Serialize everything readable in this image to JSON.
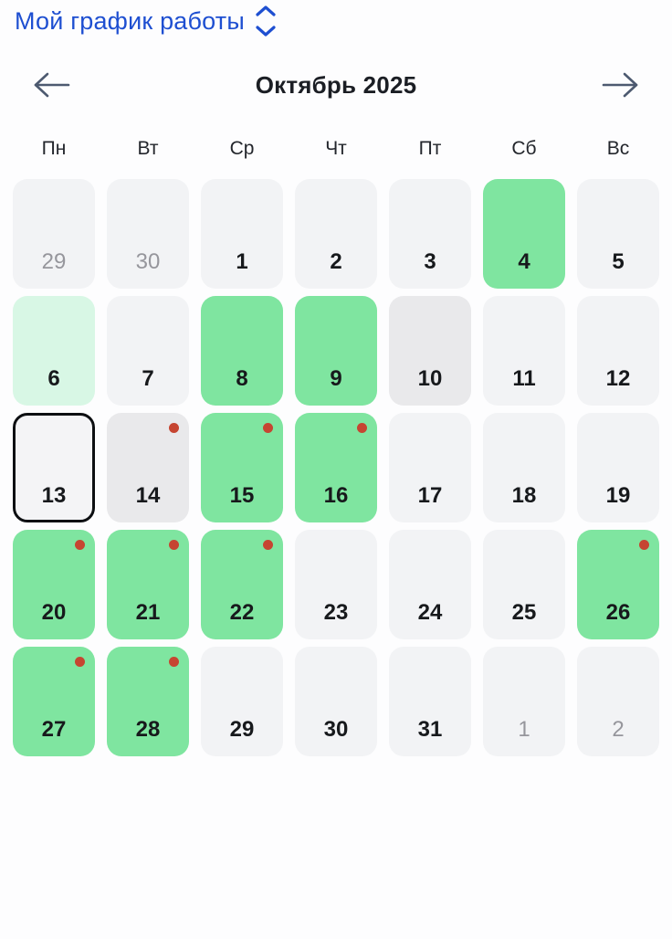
{
  "header": {
    "title": "Мой график работы"
  },
  "calendar": {
    "month_label": "Октябрь 2025",
    "weekdays": [
      "Пн",
      "Вт",
      "Ср",
      "Чт",
      "Пт",
      "Сб",
      "Вс"
    ],
    "days": [
      {
        "label": "29",
        "muted": true
      },
      {
        "label": "30",
        "muted": true
      },
      {
        "label": "1"
      },
      {
        "label": "2"
      },
      {
        "label": "3"
      },
      {
        "label": "4",
        "state": "green"
      },
      {
        "label": "5"
      },
      {
        "label": "6",
        "state": "mint"
      },
      {
        "label": "7"
      },
      {
        "label": "8",
        "state": "green"
      },
      {
        "label": "9",
        "state": "green"
      },
      {
        "label": "10",
        "state": "shaded"
      },
      {
        "label": "11"
      },
      {
        "label": "12"
      },
      {
        "label": "13",
        "today": true
      },
      {
        "label": "14",
        "state": "shaded",
        "dot": true
      },
      {
        "label": "15",
        "state": "green",
        "dot": true
      },
      {
        "label": "16",
        "state": "green",
        "dot": true
      },
      {
        "label": "17"
      },
      {
        "label": "18"
      },
      {
        "label": "19"
      },
      {
        "label": "20",
        "state": "green",
        "dot": true
      },
      {
        "label": "21",
        "state": "green",
        "dot": true
      },
      {
        "label": "22",
        "state": "green",
        "dot": true
      },
      {
        "label": "23"
      },
      {
        "label": "24"
      },
      {
        "label": "25"
      },
      {
        "label": "26",
        "state": "green",
        "dot": true
      },
      {
        "label": "27",
        "state": "green",
        "dot": true
      },
      {
        "label": "28",
        "state": "green",
        "dot": true
      },
      {
        "label": "29"
      },
      {
        "label": "30"
      },
      {
        "label": "31"
      },
      {
        "label": "1",
        "muted": true
      },
      {
        "label": "2",
        "muted": true
      }
    ],
    "colors": {
      "accent_blue": "#1e4fd1",
      "shift_green": "#7fe5a0",
      "light_mint": "#d8f7e5",
      "default_cell": "#f2f3f5",
      "shaded_cell": "#e9e9eb",
      "event_dot_red": "#c64531",
      "today_border": "#0d0f12",
      "arrow_slate": "#4d5a70"
    }
  }
}
